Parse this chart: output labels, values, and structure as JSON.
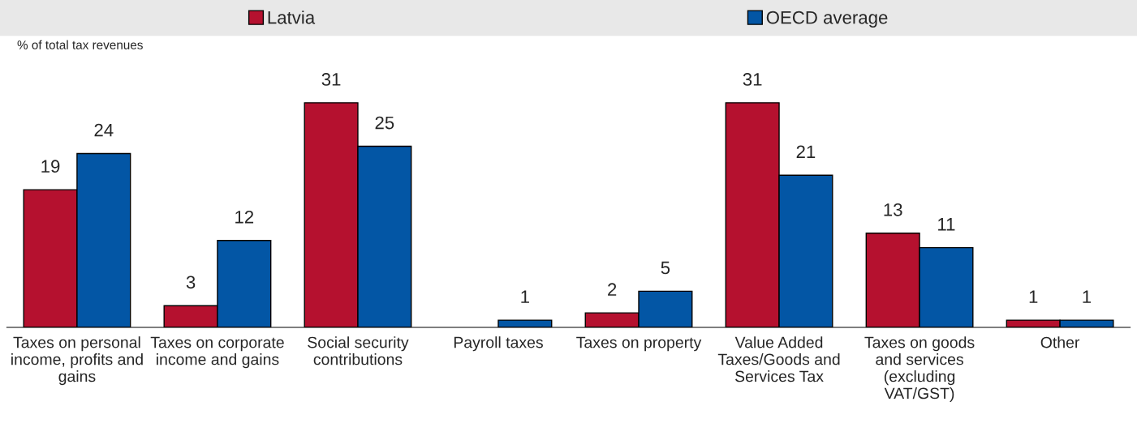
{
  "chart_data": {
    "type": "bar",
    "ylabel": "% of total tax revenues",
    "categories": [
      "Taxes on personal\nincome, profits and\ngains",
      "Taxes on corporate\nincome and gains",
      "Social security\ncontributions",
      "Payroll taxes",
      "Taxes on property",
      "Value Added\nTaxes/Goods and\nServices Tax",
      "Taxes on goods\nand services\n(excluding\nVAT/GST)",
      "Other"
    ],
    "series": [
      {
        "name": "Latvia",
        "color": "#b5112f",
        "values": [
          19,
          3,
          31,
          null,
          2,
          31,
          13,
          1
        ]
      },
      {
        "name": "OECD average",
        "color": "#0356a5",
        "values": [
          24,
          12,
          25,
          1,
          5,
          21,
          11,
          1
        ]
      }
    ],
    "data_labels": true,
    "legend": "top"
  }
}
